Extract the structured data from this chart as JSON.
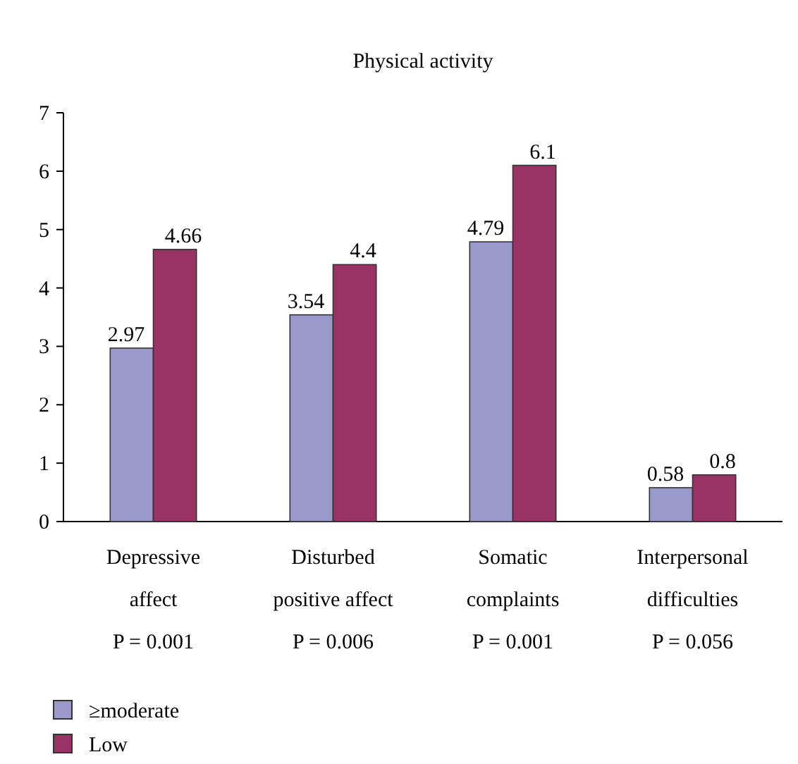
{
  "chart_data": {
    "type": "bar",
    "title": "Physical activity",
    "categories": [
      "Depressive\naffect\nP = 0.001",
      "Disturbed\npositive affect\nP = 0.006",
      "Somatic\ncomplaints\nP = 0.001",
      "Interpersonal\ndifficulties\nP = 0.056"
    ],
    "series": [
      {
        "name": "≥moderate",
        "color": "#9999cc",
        "values": [
          2.97,
          3.54,
          4.79,
          0.58
        ]
      },
      {
        "name": "Low",
        "color": "#993366",
        "values": [
          4.66,
          4.4,
          6.1,
          0.8
        ]
      }
    ],
    "ylim": [
      0,
      7
    ],
    "yticks": [
      0,
      1,
      2,
      3,
      4,
      5,
      6,
      7
    ],
    "grid": false,
    "legend": "bottom left",
    "data_labels": true
  }
}
